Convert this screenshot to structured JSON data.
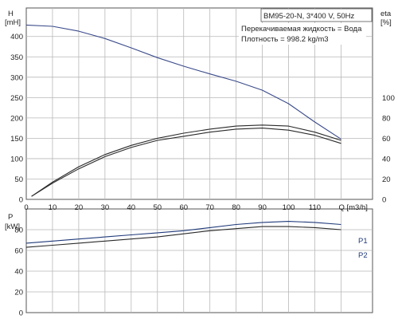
{
  "chart_data": [
    {
      "type": "line",
      "title": "BM95-20-N, 3*400 V, 50Hz",
      "notes": [
        "Перекачиваемая жидкость = Вода",
        "Плотность = 998.2 kg/m3"
      ],
      "xlabel": "Q [m3/h]",
      "x_ticks": [
        0,
        10,
        20,
        30,
        40,
        50,
        60,
        70,
        80,
        90,
        100,
        110
      ],
      "x_tick_labels": [
        "0",
        "10",
        "20",
        "30",
        "40",
        "50",
        "60",
        "70",
        "80",
        "90",
        "100",
        "110",
        "Q [m3/h]"
      ],
      "xlim": [
        0,
        132
      ],
      "ylabel_left": [
        "H",
        "[mH]"
      ],
      "ylim_left": [
        0,
        470
      ],
      "y_ticks_left": [
        0,
        50,
        100,
        150,
        200,
        250,
        300,
        350,
        400
      ],
      "ylabel_right": [
        "eta",
        "[%]"
      ],
      "ylim_right": [
        0,
        188
      ],
      "y_ticks_right": [
        0,
        20,
        40,
        60,
        80,
        100
      ],
      "grid": true,
      "series": [
        {
          "axis": "left",
          "color": "#3a4a8a",
          "x": [
            0,
            10,
            20,
            30,
            40,
            50,
            60,
            70,
            80,
            90,
            100,
            110,
            120
          ],
          "y": [
            428,
            425,
            413,
            395,
            372,
            348,
            327,
            308,
            290,
            268,
            235,
            190,
            148
          ]
        },
        {
          "axis": "right",
          "color": "#2a2a2a",
          "x": [
            2,
            10,
            20,
            30,
            40,
            50,
            60,
            70,
            80,
            90,
            100,
            110,
            120
          ],
          "y": [
            3,
            17,
            32,
            44,
            53,
            60,
            65,
            69,
            72,
            73,
            72,
            66,
            58
          ]
        },
        {
          "axis": "right",
          "color": "#2a2a2a",
          "x": [
            2,
            10,
            20,
            30,
            40,
            50,
            60,
            70,
            80,
            90,
            100,
            110,
            120
          ],
          "y": [
            3,
            16,
            30,
            42,
            51,
            58,
            62,
            66,
            69,
            70,
            68,
            63,
            55
          ]
        }
      ]
    },
    {
      "type": "line",
      "ylabel": [
        "P",
        "[kW]"
      ],
      "ylim": [
        0,
        100
      ],
      "y_ticks": [
        0,
        20,
        40,
        60,
        80
      ],
      "xlim": [
        0,
        132
      ],
      "x_ticks": [
        0,
        10,
        20,
        30,
        40,
        50,
        60,
        70,
        80,
        90,
        100,
        110
      ],
      "grid": true,
      "series": [
        {
          "name": "P1",
          "color": "#1f3a7a",
          "x": [
            0,
            10,
            20,
            30,
            40,
            50,
            60,
            70,
            80,
            90,
            100,
            110,
            120
          ],
          "y": [
            67,
            69,
            71,
            73,
            75,
            77,
            79,
            82,
            85,
            87,
            88,
            87,
            85
          ]
        },
        {
          "name": "P2",
          "color": "#2a2a2a",
          "x": [
            0,
            10,
            20,
            30,
            40,
            50,
            60,
            70,
            80,
            90,
            100,
            110,
            120
          ],
          "y": [
            63,
            65,
            67,
            69,
            71,
            73,
            76,
            79,
            81,
            83,
            83,
            82,
            80
          ]
        }
      ]
    }
  ]
}
